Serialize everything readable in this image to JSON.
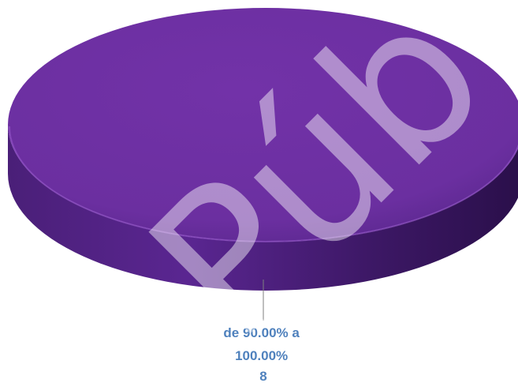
{
  "chart_data": {
    "type": "pie",
    "title": "",
    "slices": [
      {
        "label_lines": [
          "de 90.00% a",
          "100.00%",
          "8"
        ],
        "range": "de 90.00% a 100.00%",
        "value": 8,
        "percent": 100,
        "color": "#6B2FA0"
      }
    ],
    "legend": "none"
  },
  "colors": {
    "slice": "#6B2FA0",
    "label": "#4F81BD",
    "leader_line": "#7F7F7F"
  },
  "watermark": {
    "text": "Públ",
    "opacity": 0.45,
    "color": "#ffffff"
  }
}
